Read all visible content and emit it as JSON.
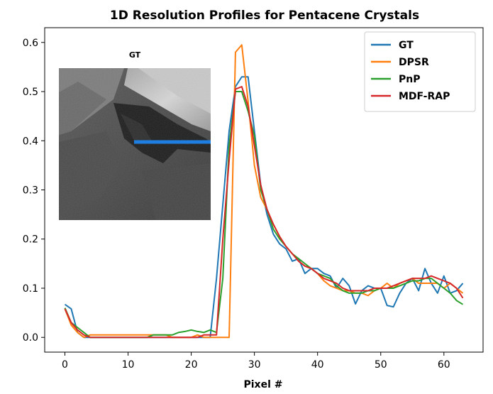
{
  "chart_data": {
    "type": "line",
    "title": "1D Resolution Profiles for Pentacene Crystals",
    "xlabel": "Pixel #",
    "ylabel": "",
    "xlim": [
      -3.2,
      66.2
    ],
    "ylim": [
      -0.03,
      0.63
    ],
    "xticks": [
      0,
      10,
      20,
      30,
      40,
      50,
      60
    ],
    "yticks": [
      0.0,
      0.1,
      0.2,
      0.3,
      0.4,
      0.5,
      0.6
    ],
    "legend_position": "top-right",
    "grid": false,
    "x": [
      0,
      1,
      2,
      3,
      4,
      5,
      6,
      7,
      8,
      9,
      10,
      11,
      12,
      13,
      14,
      15,
      16,
      17,
      18,
      19,
      20,
      21,
      22,
      23,
      24,
      25,
      26,
      27,
      28,
      29,
      30,
      31,
      32,
      33,
      34,
      35,
      36,
      37,
      38,
      39,
      40,
      41,
      42,
      43,
      44,
      45,
      46,
      47,
      48,
      49,
      50,
      51,
      52,
      53,
      54,
      55,
      56,
      57,
      58,
      59,
      60,
      61,
      62,
      63
    ],
    "series": [
      {
        "name": "GT",
        "color": "#1f77b4",
        "values": [
          0.067,
          0.058,
          0.01,
          0.0,
          0.0,
          0.0,
          0.0,
          0.0,
          0.0,
          0.0,
          0.0,
          0.0,
          0.0,
          0.0,
          0.0,
          0.0,
          0.0,
          0.0,
          0.0,
          0.0,
          0.0,
          0.0,
          0.0,
          0.0,
          0.12,
          0.27,
          0.42,
          0.51,
          0.53,
          0.53,
          0.42,
          0.31,
          0.25,
          0.21,
          0.19,
          0.18,
          0.155,
          0.16,
          0.13,
          0.14,
          0.14,
          0.13,
          0.125,
          0.1,
          0.12,
          0.105,
          0.068,
          0.095,
          0.105,
          0.1,
          0.1,
          0.065,
          0.062,
          0.09,
          0.11,
          0.12,
          0.095,
          0.14,
          0.11,
          0.09,
          0.125,
          0.09,
          0.095,
          0.11
        ]
      },
      {
        "name": "DPSR",
        "color": "#ff7f0e",
        "values": [
          0.058,
          0.025,
          0.01,
          0.0,
          0.005,
          0.005,
          0.005,
          0.005,
          0.005,
          0.005,
          0.005,
          0.005,
          0.005,
          0.005,
          0.005,
          0.005,
          0.005,
          0.0,
          0.0,
          0.0,
          0.0,
          0.005,
          0.0,
          0.0,
          0.0,
          0.0,
          0.0,
          0.58,
          0.595,
          0.48,
          0.35,
          0.285,
          0.26,
          0.23,
          0.205,
          0.185,
          0.17,
          0.155,
          0.145,
          0.14,
          0.13,
          0.115,
          0.105,
          0.1,
          0.095,
          0.095,
          0.09,
          0.09,
          0.085,
          0.095,
          0.1,
          0.11,
          0.1,
          0.11,
          0.115,
          0.12,
          0.11,
          0.11,
          0.11,
          0.11,
          0.1,
          0.11,
          0.1,
          0.09
        ]
      },
      {
        "name": "PnP",
        "color": "#2ca02c",
        "values": [
          0.06,
          0.03,
          0.02,
          0.01,
          0.0,
          0.0,
          0.0,
          0.0,
          0.0,
          0.0,
          0.0,
          0.0,
          0.0,
          0.0,
          0.005,
          0.005,
          0.005,
          0.005,
          0.01,
          0.012,
          0.015,
          0.012,
          0.01,
          0.015,
          0.01,
          0.12,
          0.39,
          0.5,
          0.5,
          0.46,
          0.41,
          0.3,
          0.26,
          0.22,
          0.2,
          0.185,
          0.17,
          0.16,
          0.15,
          0.14,
          0.13,
          0.125,
          0.12,
          0.105,
          0.095,
          0.09,
          0.09,
          0.09,
          0.095,
          0.095,
          0.1,
          0.1,
          0.1,
          0.105,
          0.11,
          0.115,
          0.115,
          0.12,
          0.12,
          0.11,
          0.1,
          0.09,
          0.075,
          0.067
        ]
      },
      {
        "name": "MDF-RAP",
        "color": "#d62728",
        "values": [
          0.058,
          0.03,
          0.015,
          0.005,
          0.0,
          0.0,
          0.0,
          0.0,
          0.0,
          0.0,
          0.0,
          0.0,
          0.0,
          0.0,
          0.0,
          0.0,
          0.0,
          0.0,
          0.0,
          0.0,
          0.0,
          0.0,
          0.005,
          0.005,
          0.005,
          0.2,
          0.36,
          0.505,
          0.51,
          0.47,
          0.39,
          0.31,
          0.26,
          0.23,
          0.205,
          0.185,
          0.17,
          0.155,
          0.145,
          0.14,
          0.13,
          0.12,
          0.115,
          0.11,
          0.1,
          0.095,
          0.095,
          0.095,
          0.095,
          0.1,
          0.1,
          0.1,
          0.105,
          0.11,
          0.115,
          0.12,
          0.12,
          0.12,
          0.125,
          0.12,
          0.115,
          0.11,
          0.1,
          0.08
        ]
      }
    ]
  },
  "inset": {
    "title": "GT",
    "profile_line_color": "#1e7fe0"
  }
}
